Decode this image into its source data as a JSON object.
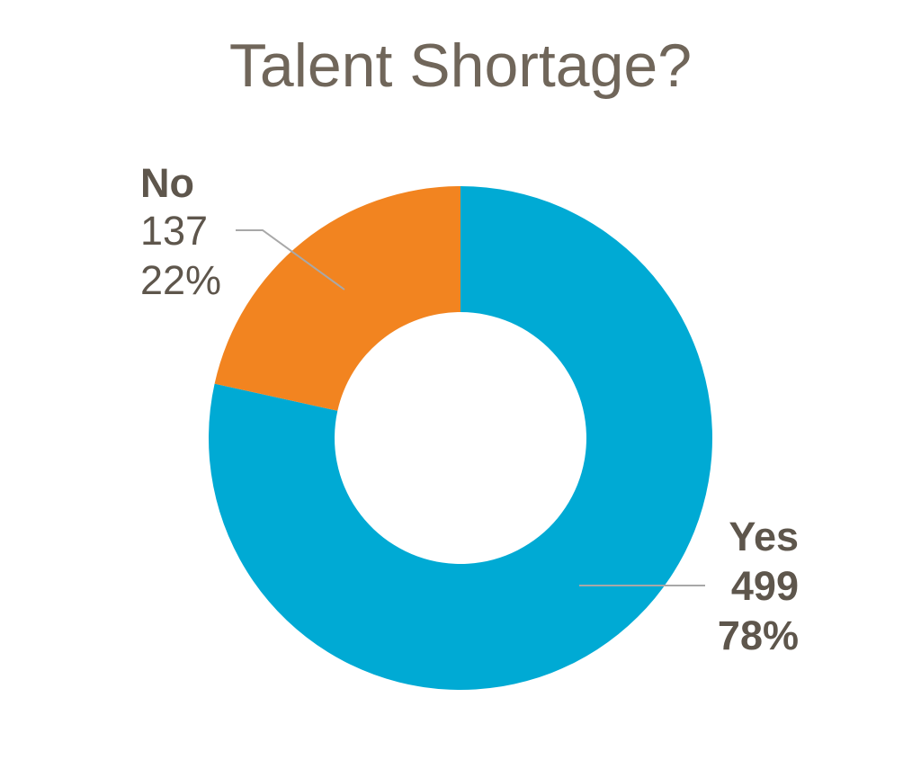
{
  "chart_data": {
    "type": "pie",
    "variant": "donut",
    "title": "Talent Shortage?",
    "start_angle_deg": 0,
    "direction": "clockwise",
    "slices": [
      {
        "label": "Yes",
        "value": 499,
        "percent_label": "78%",
        "color": "#00aad4"
      },
      {
        "label": "No",
        "value": 137,
        "percent_label": "22%",
        "color": "#f28420"
      }
    ],
    "legend": "none",
    "data_labels": "outside-with-leader-lines"
  }
}
